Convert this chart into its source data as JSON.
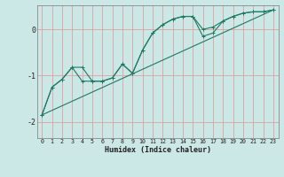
{
  "background_color": "#cce8e6",
  "grid_color": "#dda0a0",
  "line_color": "#1e7a65",
  "xlabel": "Humidex (Indice chaleur)",
  "xlim": [
    -0.5,
    23.5
  ],
  "ylim": [
    -2.35,
    0.52
  ],
  "xticks": [
    0,
    1,
    2,
    3,
    4,
    5,
    6,
    7,
    8,
    9,
    10,
    11,
    12,
    13,
    14,
    15,
    16,
    17,
    18,
    19,
    20,
    21,
    22,
    23
  ],
  "yticks": [
    0,
    -1,
    -2
  ],
  "ytick_labels": [
    "0",
    "-1",
    "-2"
  ],
  "curve1_x": [
    0,
    1,
    2,
    3,
    4,
    5,
    6,
    7,
    8,
    9,
    10,
    11,
    12,
    13,
    14,
    15,
    16,
    17,
    18,
    19,
    20,
    21,
    22,
    23
  ],
  "curve1_y": [
    -1.85,
    -1.25,
    -1.08,
    -0.82,
    -0.82,
    -1.12,
    -1.12,
    -1.05,
    -0.75,
    -0.95,
    -0.45,
    -0.08,
    0.1,
    0.22,
    0.28,
    0.28,
    0.0,
    0.05,
    0.18,
    0.28,
    0.35,
    0.38,
    0.38,
    0.42
  ],
  "curve2_x": [
    0,
    1,
    2,
    3,
    4,
    5,
    6,
    7,
    8,
    9,
    10,
    11,
    12,
    13,
    14,
    15,
    16,
    17,
    18,
    19,
    20,
    21,
    22,
    23
  ],
  "curve2_y": [
    -1.85,
    -1.25,
    -1.08,
    -0.82,
    -1.12,
    -1.12,
    -1.12,
    -1.05,
    -0.75,
    -0.95,
    -0.45,
    -0.08,
    0.1,
    0.22,
    0.28,
    0.28,
    -0.15,
    -0.08,
    0.18,
    0.28,
    0.35,
    0.38,
    0.38,
    0.42
  ],
  "line_x": [
    0,
    23
  ],
  "line_y": [
    -1.85,
    0.42
  ],
  "marker_size": 2.8,
  "line_width": 0.8,
  "xlabel_fontsize": 6.0,
  "xtick_fontsize": 4.8,
  "ytick_fontsize": 6.0
}
